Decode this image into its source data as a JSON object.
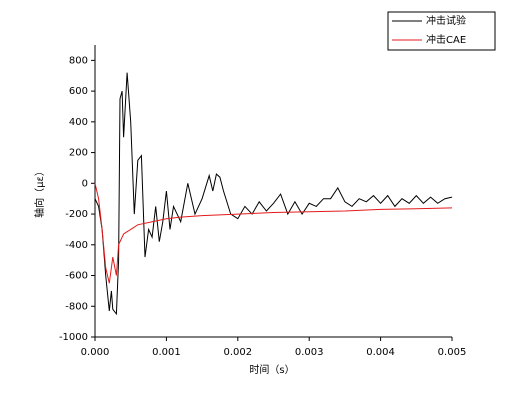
{
  "chart_data": {
    "type": "line",
    "x_label": "时间（s）",
    "y_label": "轴向（με）",
    "xlim": [
      0,
      0.005
    ],
    "xticks": [
      {
        "value": 0,
        "label": "0.000"
      },
      {
        "value": 0.001,
        "label": "0.001"
      },
      {
        "value": 0.002,
        "label": "0.002"
      },
      {
        "value": 0.003,
        "label": "0.003"
      },
      {
        "value": 0.004,
        "label": "0.004"
      },
      {
        "value": 0.005,
        "label": "0.005"
      }
    ],
    "ylim": [
      -1000,
      900
    ],
    "yticks": [
      -1000,
      -800,
      -600,
      -400,
      -200,
      0,
      200,
      400,
      600,
      800
    ],
    "legend": "upper right",
    "series": [
      {
        "name": "冲击试验",
        "color": "#000000",
        "x": [
          0,
          5e-05,
          0.0001,
          0.00015,
          0.0002,
          0.00023,
          0.00025,
          0.0003,
          0.00033,
          0.00035,
          0.00038,
          0.0004,
          0.00045,
          0.0005,
          0.00055,
          0.0006,
          0.00065,
          0.0007,
          0.00075,
          0.0008,
          0.00085,
          0.0009,
          0.00095,
          0.001,
          0.00105,
          0.0011,
          0.0012,
          0.0013,
          0.0014,
          0.0015,
          0.0016,
          0.00165,
          0.0017,
          0.00175,
          0.0018,
          0.0019,
          0.002,
          0.0021,
          0.0022,
          0.0023,
          0.0024,
          0.0025,
          0.0026,
          0.0027,
          0.0028,
          0.0029,
          0.003,
          0.0031,
          0.0032,
          0.0033,
          0.0034,
          0.0035,
          0.0036,
          0.0037,
          0.0038,
          0.0039,
          0.004,
          0.0041,
          0.0042,
          0.0043,
          0.0044,
          0.0045,
          0.0046,
          0.0047,
          0.0048,
          0.0049,
          0.005
        ],
        "values": [
          -100,
          -150,
          -300,
          -600,
          -830,
          -700,
          -820,
          -850,
          -500,
          550,
          600,
          300,
          720,
          400,
          -200,
          150,
          180,
          -480,
          -300,
          -350,
          -150,
          -380,
          -250,
          -50,
          -300,
          -150,
          -250,
          0,
          -200,
          -100,
          50,
          -50,
          60,
          40,
          -50,
          -200,
          -230,
          -150,
          -200,
          -120,
          -180,
          -130,
          -70,
          -200,
          -120,
          -200,
          -130,
          -150,
          -100,
          -100,
          -30,
          -120,
          -150,
          -100,
          -120,
          -80,
          -130,
          -80,
          -150,
          -100,
          -130,
          -80,
          -130,
          -90,
          -130,
          -100,
          -90
        ]
      },
      {
        "name": "冲击CAE",
        "color": "#e41a1c",
        "x": [
          0,
          5e-05,
          0.0001,
          0.00015,
          0.0002,
          0.00025,
          0.0003,
          0.00033,
          0.0004,
          0.0005,
          0.0006,
          0.0008,
          0.001,
          0.0012,
          0.0015,
          0.002,
          0.0025,
          0.003,
          0.0035,
          0.004,
          0.0045,
          0.005
        ],
        "values": [
          0,
          -100,
          -300,
          -550,
          -650,
          -480,
          -600,
          -400,
          -330,
          -300,
          -270,
          -250,
          -230,
          -220,
          -210,
          -200,
          -190,
          -185,
          -180,
          -170,
          -165,
          -160
        ]
      }
    ]
  }
}
